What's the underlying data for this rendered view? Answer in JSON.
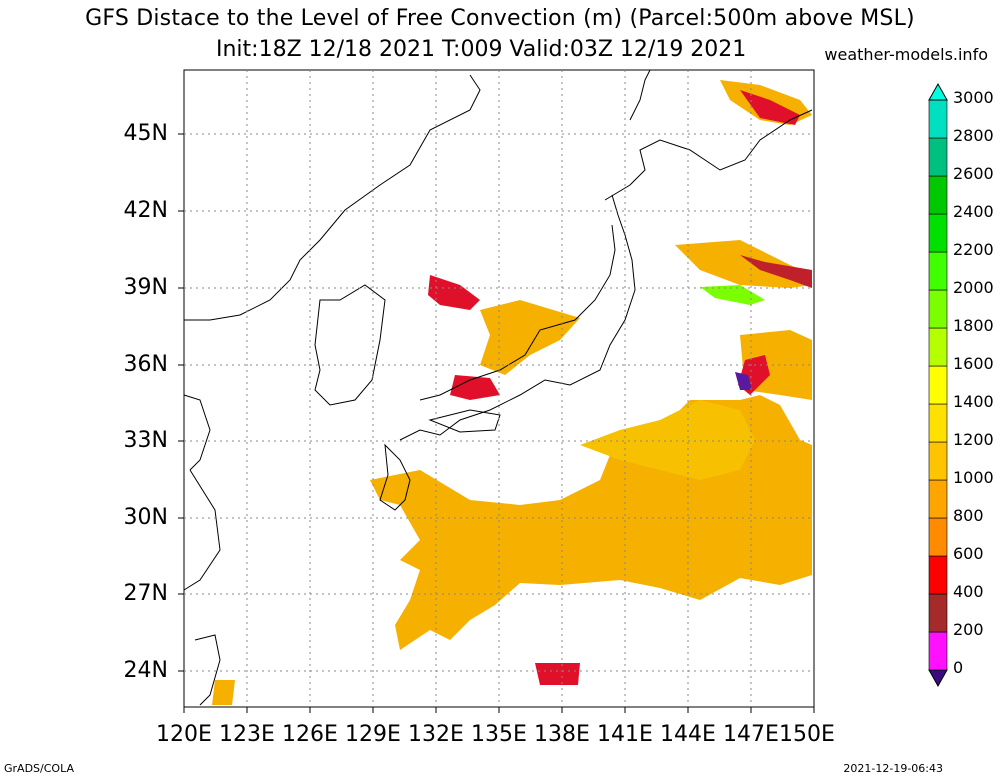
{
  "title": {
    "line1": "GFS Distace to the Level of Free Convection (m) (Parcel:500m above MSL)",
    "line2": "Init:18Z 12/18 2021 T:009 Valid:03Z 12/19 2021",
    "site": "weather-models.info"
  },
  "footer": {
    "left": "GrADS/COLA",
    "right": "2021-12-19-06:43"
  },
  "axes": {
    "lat_labels": [
      "45N",
      "42N",
      "39N",
      "36N",
      "33N",
      "30N",
      "27N",
      "24N"
    ],
    "lat_values": [
      45,
      42,
      39,
      36,
      33,
      30,
      27,
      24
    ],
    "lon_labels": [
      "120E",
      "123E",
      "126E",
      "129E",
      "132E",
      "135E",
      "138E",
      "141E",
      "144E",
      "147E",
      "150E"
    ],
    "lon_values": [
      120,
      123,
      126,
      129,
      132,
      135,
      138,
      141,
      144,
      147,
      150
    ],
    "lon_range": [
      120,
      150
    ],
    "lat_range": [
      22.5,
      47.5
    ],
    "grid": true
  },
  "colorbar": {
    "labels": [
      "0",
      "200",
      "400",
      "600",
      "800",
      "1000",
      "1200",
      "1400",
      "1600",
      "1800",
      "2000",
      "2200",
      "2400",
      "2600",
      "2800",
      "3000"
    ],
    "colors": [
      "#3a0a80",
      "#ff10ff",
      "#a52a2a",
      "#ff0000",
      "#ff8c00",
      "#ffa500",
      "#ffc400",
      "#ffe100",
      "#ffff00",
      "#b4ff00",
      "#7bff00",
      "#40ff00",
      "#00e000",
      "#00c800",
      "#00c080",
      "#00e0c0",
      "#00ffe0"
    ]
  },
  "fields": [
    {
      "name": "south-field-orange",
      "color": "#f5a800",
      "lon": [
        128.8,
        150
      ],
      "lat": [
        25.2,
        33.5
      ]
    },
    {
      "name": "southeast-field",
      "color": "#f5b000",
      "lon": [
        140.5,
        150
      ],
      "lat": [
        27,
        35.5
      ]
    }
  ]
}
